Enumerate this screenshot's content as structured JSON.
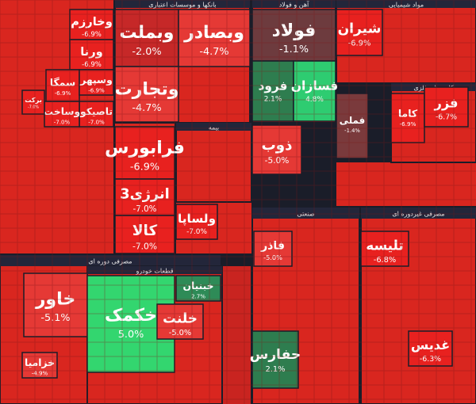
{
  "chart_data": {
    "type": "treemap",
    "sectors": [
      {
        "name": "بانکها و موسسات اعتباری"
      },
      {
        "name": "آهن و فولاد"
      },
      {
        "name": "مواد شیمیایی"
      },
      {
        "name": "کانی های فلزی"
      },
      {
        "name": "بیمه"
      },
      {
        "name": "صنعتی"
      },
      {
        "name": "مصرفی غیردوره ای"
      },
      {
        "name": "مصرفی دوره ای"
      },
      {
        "name": "قطعات خودرو"
      }
    ],
    "tiles": [
      {
        "name": "وبملت",
        "value": -2.0,
        "value_label": "-2.0%",
        "color": "#c62828"
      },
      {
        "name": "وبصادر",
        "value": -4.7,
        "value_label": "-4.7%",
        "color": "#e53935"
      },
      {
        "name": "وتجارت",
        "value": -4.7,
        "value_label": "-4.7%",
        "color": "#e53935"
      },
      {
        "name": "فولاد",
        "value": -1.1,
        "value_label": "-1.1%",
        "color": "#6d3b3e"
      },
      {
        "name": "فرود",
        "value": 2.1,
        "value_label": "2.1%",
        "color": "#2e7d4f"
      },
      {
        "name": "فسازان",
        "value": 4.8,
        "value_label": "4.8%",
        "color": "#2ecc71"
      },
      {
        "name": "شیران",
        "value": -6.9,
        "value_label": "-6.9%",
        "color": "#e8211f"
      },
      {
        "name": "فملی",
        "value": -1.4,
        "value_label": "-1.4%",
        "color": "#7a3a3c"
      },
      {
        "name": "کاما",
        "value": -6.9,
        "value_label": "-6.9%",
        "color": "#e8211f"
      },
      {
        "name": "فزر",
        "value": -6.7,
        "value_label": "-6.7%",
        "color": "#e8211f"
      },
      {
        "name": "ذوب",
        "value": -5.0,
        "value_label": "-5.0%",
        "color": "#e53935"
      },
      {
        "name": "فرابورس",
        "value": -6.9,
        "value_label": "-6.9%",
        "color": "#e8211f"
      },
      {
        "name": "انرژی3",
        "value": -7.0,
        "value_label": "-7.0%",
        "color": "#e8211f"
      },
      {
        "name": "کالا",
        "value": -7.0,
        "value_label": "-7.0%",
        "color": "#e8211f"
      },
      {
        "name": "خاور",
        "value": -5.1,
        "value_label": "-5.1%",
        "color": "#e53935"
      },
      {
        "name": "خکمک",
        "value": 5.0,
        "value_label": "5.0%",
        "color": "#33d66f"
      },
      {
        "name": "خبنیان",
        "value": 2.7,
        "value_label": "2.7%",
        "color": "#2e8b57"
      },
      {
        "name": "خلنت",
        "value": -5.0,
        "value_label": "-5.0%",
        "color": "#e53935"
      },
      {
        "name": "حفارس",
        "value": 2.1,
        "value_label": "2.1%",
        "color": "#2e7d4f"
      },
      {
        "name": "فاذر",
        "value": -5.0,
        "value_label": "-5.0%",
        "color": "#e53935"
      },
      {
        "name": "تلیسه",
        "value": -6.8,
        "value_label": "-6.8%",
        "color": "#e8211f"
      },
      {
        "name": "وخارزم",
        "value": -6.9,
        "value_label": "-6.9%",
        "color": "#e8211f"
      },
      {
        "name": "ورنا",
        "value": -6.9,
        "value_label": "-6.9%",
        "color": "#e8211f"
      },
      {
        "name": "سمگا",
        "value": -6.9,
        "value_label": "-6.9%",
        "color": "#e8211f"
      },
      {
        "name": "وسپهر",
        "value": -6.9,
        "value_label": "-6.9%",
        "color": "#e8211f"
      },
      {
        "name": "تاصیکو",
        "value": -7.0,
        "value_label": "-7.0%",
        "color": "#e8211f"
      },
      {
        "name": "وساخت",
        "value": -7.0,
        "value_label": "-7.0%",
        "color": "#e8211f"
      },
      {
        "name": "برکت",
        "value": -7.0,
        "value_label": "-7.0%",
        "color": "#e8211f"
      },
      {
        "name": "ولساپا",
        "value": -7.0,
        "value_label": "-7.0%",
        "color": "#e8211f"
      },
      {
        "name": "غدیس",
        "value": -6.3,
        "value_label": "-6.3%",
        "color": "#e8211f"
      },
      {
        "name": "خزامیا",
        "value": -4.9,
        "value_label": "-4.9%",
        "color": "#e53935"
      }
    ]
  }
}
